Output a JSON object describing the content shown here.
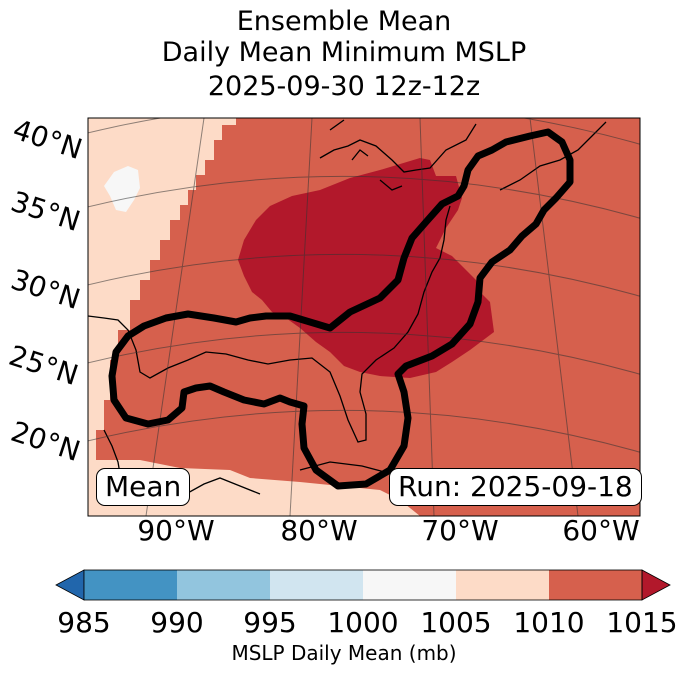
{
  "title": {
    "line1": "Ensemble Mean",
    "line2": "Daily Mean Minimum MSLP",
    "line3": "2025-09-30 12z-12z"
  },
  "badges": {
    "mean": "Mean",
    "run": "Run: 2025-09-18"
  },
  "lat_labels": [
    "40°N",
    "35°N",
    "30°N",
    "25°N",
    "20°N"
  ],
  "lon_labels": [
    "90°W",
    "80°W",
    "70°W",
    "60°W"
  ],
  "colorbar": {
    "label": "MSLP Daily Mean (mb)",
    "ticks": [
      "985",
      "990",
      "995",
      "1000",
      "1005",
      "1010",
      "1015"
    ],
    "colors": {
      "lt985": "#2166ac",
      "985_990": "#4393c3",
      "990_995": "#92c5de",
      "995_1000": "#d1e5f0",
      "1000_1005": "#f7f7f7",
      "1005_1010": "#fddbc7",
      "1010_1015": "#d6604d",
      "gt1015": "#b2182b"
    }
  }
}
